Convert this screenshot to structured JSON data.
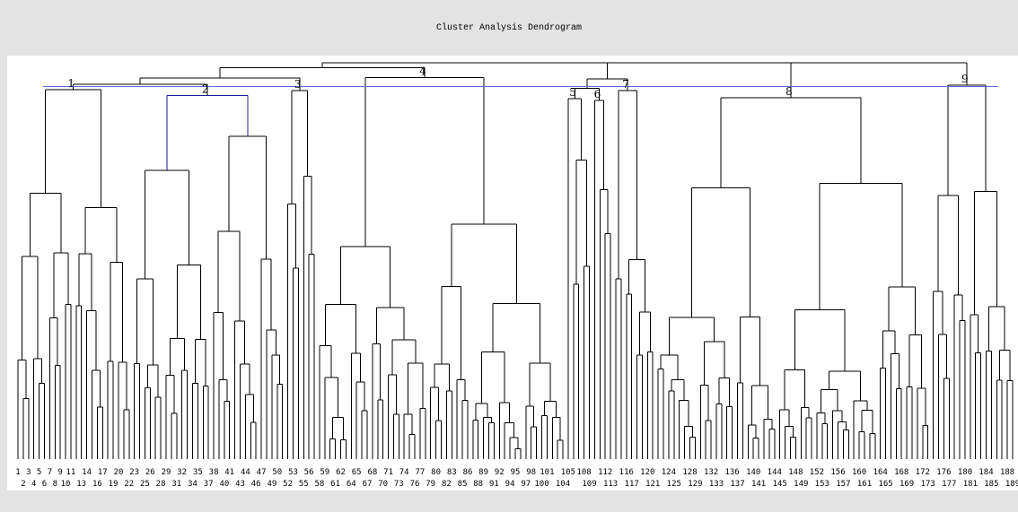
{
  "title": "Cluster Analysis Dendrogram",
  "colors": {
    "background": "#e3e3e3",
    "plot": "#ffffff",
    "tree": "#000000",
    "cut_line": "#5a6ed8",
    "highlight": "#1c1c8c"
  },
  "chart_data": {
    "type": "dendrogram",
    "title": "Cluster Analysis Dendrogram",
    "leaf_count": 189,
    "leaf_labels_top_row": [
      "1",
      "3",
      "5",
      "7",
      "9",
      "11",
      "14",
      "17",
      "20",
      "23",
      "26",
      "29",
      "32",
      "35",
      "38",
      "41",
      "44",
      "47",
      "50",
      "53",
      "56",
      "59",
      "62",
      "65",
      "68",
      "71",
      "74",
      "77",
      "80",
      "83",
      "86",
      "89",
      "92",
      "95",
      "98",
      "101",
      "105",
      "108",
      "112",
      "116",
      "120",
      "124",
      "128",
      "132",
      "136",
      "140",
      "144",
      "148",
      "152",
      "156",
      "160",
      "164",
      "168",
      "172",
      "176",
      "180",
      "184",
      "188"
    ],
    "leaf_labels_bottom_row": [
      "2",
      "4",
      "6",
      "8",
      "10",
      "13",
      "16",
      "19",
      "22",
      "25",
      "28",
      "31",
      "34",
      "37",
      "40",
      "43",
      "46",
      "49",
      "52",
      "55",
      "58",
      "61",
      "64",
      "67",
      "70",
      "73",
      "76",
      "79",
      "82",
      "85",
      "88",
      "91",
      "94",
      "97",
      "100",
      "104",
      "109",
      "113",
      "117",
      "121",
      "125",
      "129",
      "133",
      "137",
      "141",
      "145",
      "149",
      "153",
      "157",
      "161",
      "165",
      "169",
      "173",
      "177",
      "181",
      "185",
      "189"
    ],
    "clusters": [
      {
        "label": "1",
        "first_leaf": 1,
        "last_leaf": 22,
        "height": 0.932
      },
      {
        "label": "2",
        "first_leaf": 23,
        "last_leaf": 51,
        "height": 0.917
      },
      {
        "label": "3",
        "first_leaf": 52,
        "last_leaf": 57,
        "height": 0.93
      },
      {
        "label": "4",
        "first_leaf": 58,
        "last_leaf": 104,
        "height": 0.963
      },
      {
        "label": "5",
        "first_leaf": 105,
        "last_leaf": 109,
        "height": 0.91
      },
      {
        "label": "6",
        "first_leaf": 110,
        "last_leaf": 113,
        "height": 0.905
      },
      {
        "label": "7",
        "first_leaf": 114,
        "last_leaf": 121,
        "height": 0.93
      },
      {
        "label": "8",
        "first_leaf": 122,
        "last_leaf": 173,
        "height": 0.912
      },
      {
        "label": "9",
        "first_leaf": 174,
        "last_leaf": 189,
        "height": 0.943
      }
    ],
    "cluster_merges": [
      {
        "join": [
          "1",
          "2"
        ],
        "height": 0.946
      },
      {
        "join": [
          "1-2",
          "3"
        ],
        "height": 0.962
      },
      {
        "join": [
          "1-3",
          "4"
        ],
        "height": 0.987
      },
      {
        "join": [
          "5",
          "6"
        ],
        "height": 0.936
      },
      {
        "join": [
          "5-6",
          "7"
        ],
        "height": 0.959
      },
      {
        "join": [
          "8",
          "9"
        ],
        "height": 1.0
      },
      {
        "join": [
          "5-7",
          "8-9"
        ],
        "height": 1.0
      },
      {
        "join": [
          "1-4",
          "5-9"
        ],
        "height": 1.0
      }
    ],
    "cut_height": 0.94,
    "y_range": [
      0,
      1
    ]
  }
}
